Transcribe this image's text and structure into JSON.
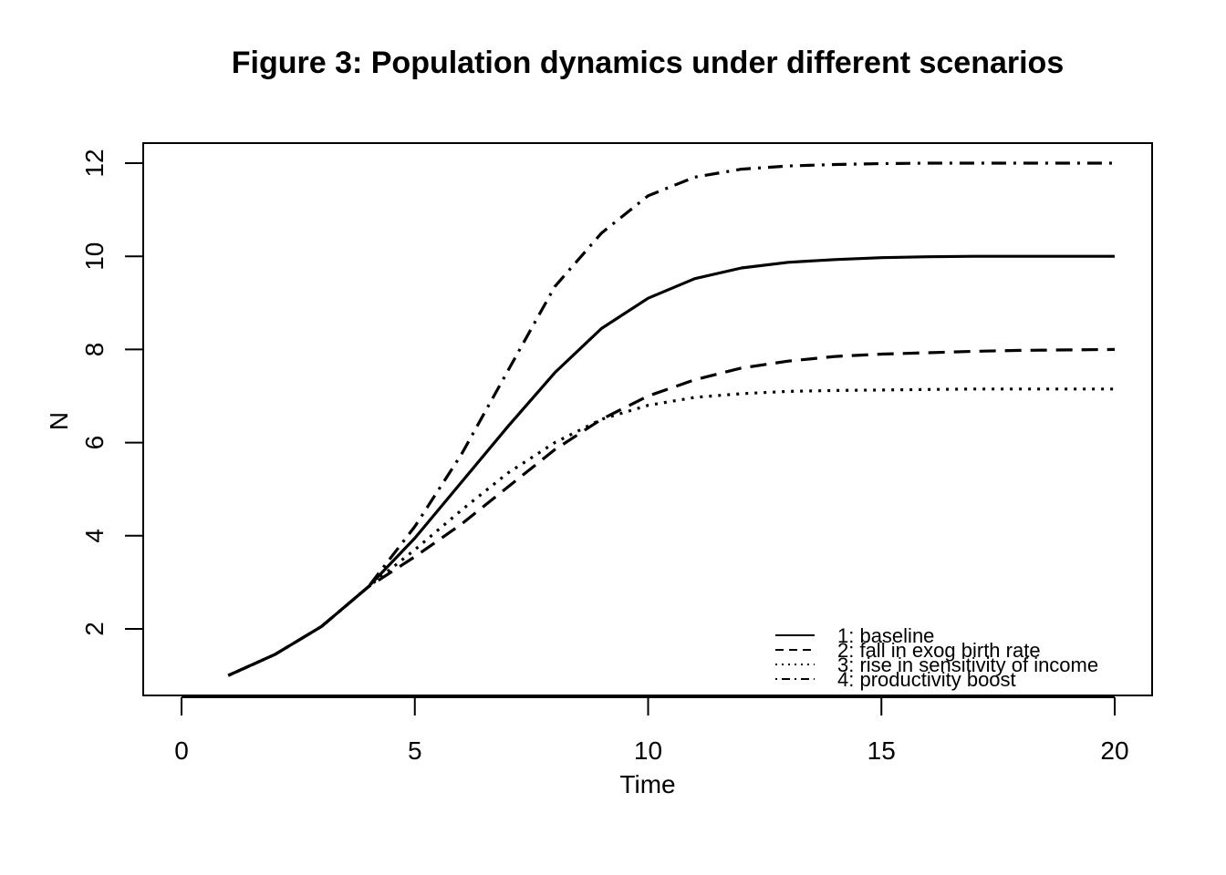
{
  "chart_data": {
    "type": "line",
    "title": "Figure 3: Population dynamics under different scenarios",
    "xlabel": "Time",
    "ylabel": "N",
    "xlim": [
      0,
      20
    ],
    "ylim": [
      1,
      12
    ],
    "xticks": [
      "0",
      "5",
      "10",
      "15",
      "20"
    ],
    "yticks": [
      "2",
      "4",
      "6",
      "8",
      "10",
      "12"
    ],
    "x": [
      1,
      2,
      3,
      4,
      5,
      6,
      7,
      8,
      9,
      10,
      11,
      12,
      13,
      14,
      15,
      16,
      17,
      18,
      19,
      20
    ],
    "legend_position": "bottom-right",
    "series": [
      {
        "name": "1: baseline",
        "style": "solid",
        "values": [
          1.0,
          1.45,
          2.05,
          2.9,
          3.95,
          5.15,
          6.35,
          7.5,
          8.45,
          9.1,
          9.52,
          9.75,
          9.87,
          9.93,
          9.97,
          9.99,
          10.0,
          10.0,
          10.0,
          10.0
        ]
      },
      {
        "name": "2: fall in exog birth rate",
        "style": "dashed",
        "values": [
          1.0,
          1.45,
          2.05,
          2.9,
          3.55,
          4.25,
          5.05,
          5.85,
          6.5,
          7.0,
          7.35,
          7.6,
          7.75,
          7.85,
          7.9,
          7.93,
          7.96,
          7.98,
          7.99,
          8.0
        ]
      },
      {
        "name": "3: rise in sensitivity of income",
        "style": "dotted",
        "values": [
          1.0,
          1.45,
          2.05,
          2.9,
          3.7,
          4.55,
          5.35,
          6.0,
          6.5,
          6.8,
          6.97,
          7.05,
          7.1,
          7.12,
          7.13,
          7.14,
          7.15,
          7.15,
          7.15,
          7.15
        ]
      },
      {
        "name": "4: productivity boost",
        "style": "dotdash",
        "values": [
          1.0,
          1.45,
          2.05,
          2.9,
          4.2,
          5.75,
          7.55,
          9.35,
          10.5,
          11.3,
          11.7,
          11.87,
          11.94,
          11.97,
          11.99,
          12.0,
          12.0,
          12.0,
          12.0,
          12.0
        ]
      }
    ]
  }
}
